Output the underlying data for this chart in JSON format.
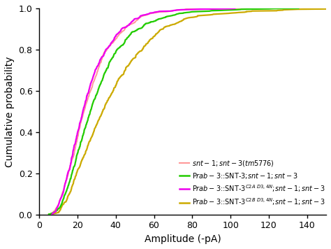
{
  "title": "",
  "xlabel": "Amplitude (-pA)",
  "ylabel": "Cumulative probability",
  "xlim": [
    0,
    150
  ],
  "ylim": [
    0.0,
    1.0
  ],
  "xticks": [
    0,
    20,
    40,
    60,
    80,
    100,
    120,
    140
  ],
  "yticks": [
    0.0,
    0.2,
    0.4,
    0.6,
    0.8,
    1.0
  ],
  "colors": {
    "pink": "#FF9999",
    "green": "#22CC00",
    "magenta": "#EE00EE",
    "gold": "#CCAA00"
  },
  "background_color": "#FFFFFF",
  "legend_labels": [
    "$\\it{snt-1;snt-3(tm5776)}$",
    "P$\\it{rab-3}$::SNT-3;$\\it{snt-1;snt-3}$",
    "P$\\it{rab-3}$::SNT-3$^{C2A\\ D3,4N}$;$\\it{snt-1;snt-3}$",
    "P$\\it{rab-3}$::SNT-3$^{C2B\\ D3,4N}$;$\\it{snt-1;snt-3}$"
  ],
  "curve_params": {
    "pink": {
      "mean_log": 3.15,
      "sigma": 0.5,
      "n": 800,
      "seed": 11
    },
    "magenta": {
      "mean_log": 3.15,
      "sigma": 0.48,
      "n": 750,
      "seed": 31
    },
    "green": {
      "mean_log": 3.3,
      "sigma": 0.52,
      "n": 900,
      "seed": 21
    },
    "gold": {
      "mean_log": 3.5,
      "sigma": 0.56,
      "n": 700,
      "seed": 41
    }
  }
}
